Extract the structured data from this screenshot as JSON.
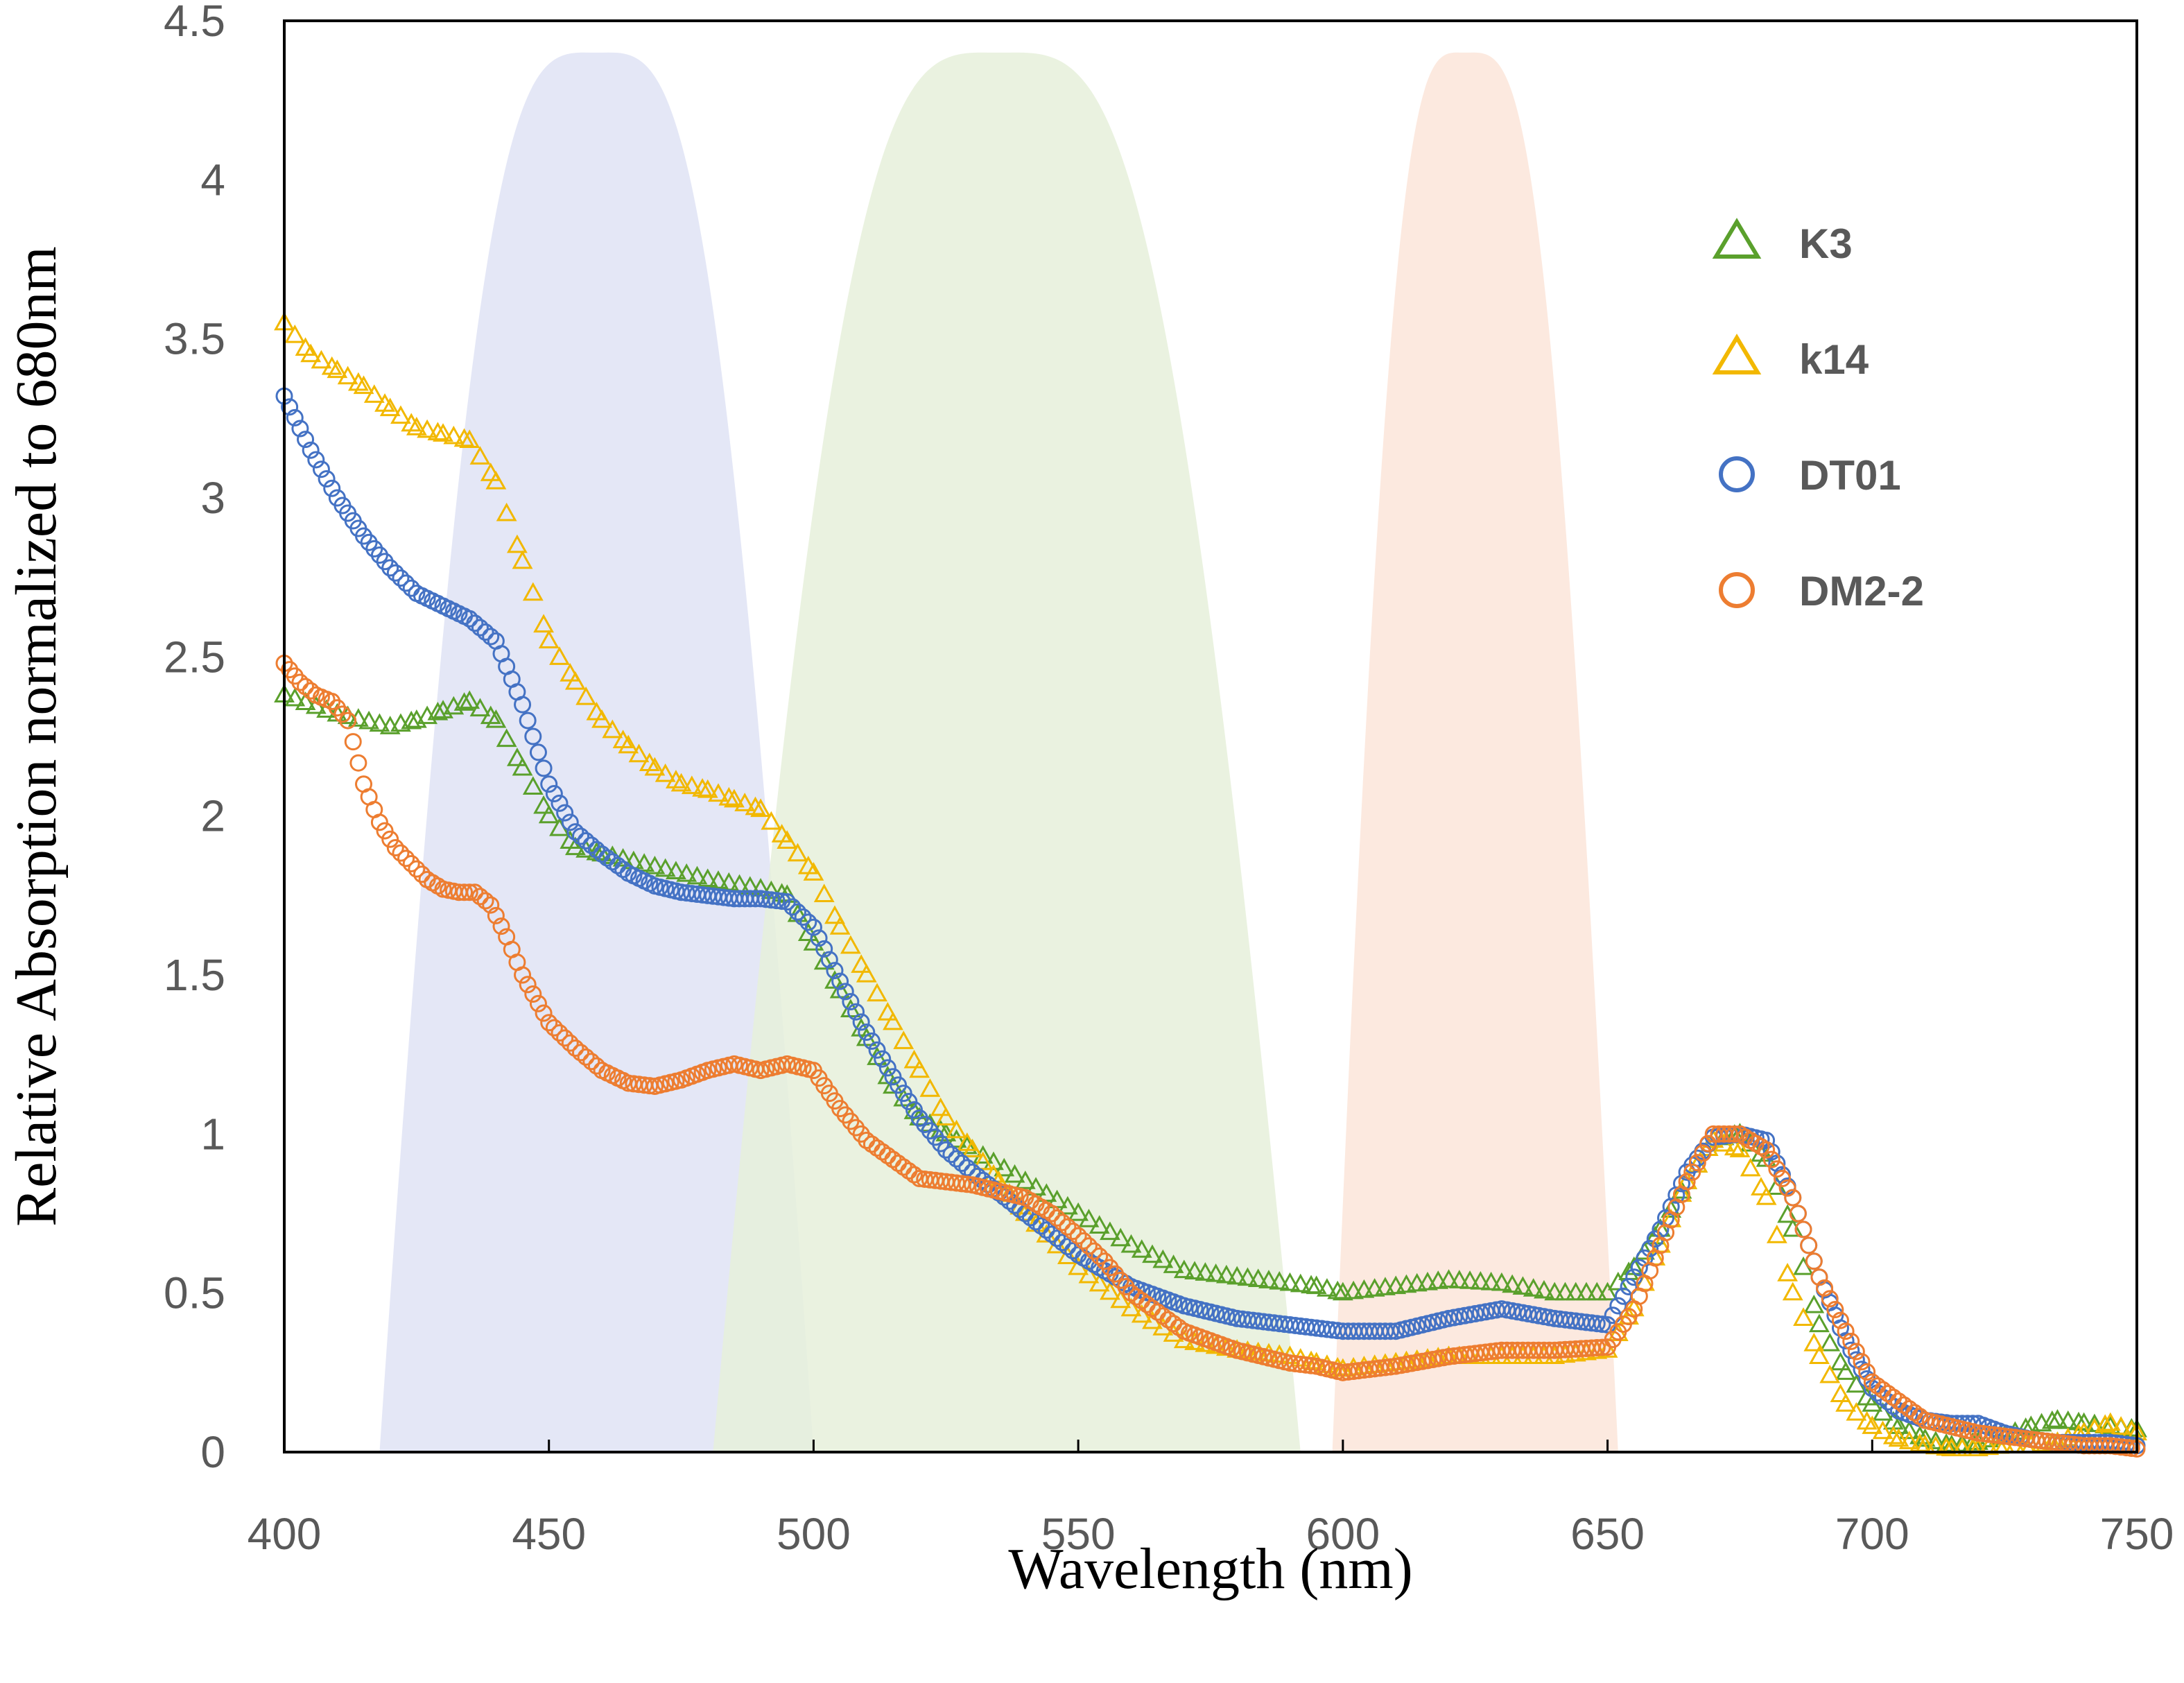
{
  "chart_data": {
    "type": "scatter",
    "title": "",
    "xlabel": "Wavelength (nm)",
    "ylabel": "Relative Absorption normalized to 680nm",
    "xlim": [
      400,
      750
    ],
    "ylim": [
      0,
      4.5
    ],
    "x_ticks": [
      "400",
      "450",
      "500",
      "550",
      "600",
      "650",
      "700",
      "750"
    ],
    "y_ticks": [
      "0",
      "0.5",
      "1",
      "1.5",
      "2",
      "2.5",
      "3",
      "3.5",
      "4",
      "4.5"
    ],
    "grid": false,
    "legend_position": "top-right",
    "bands": [
      {
        "name": "blue-band",
        "color": "#dfe3f4",
        "x_start": 418,
        "peak": 459,
        "x_end": 500,
        "height": 4.4
      },
      {
        "name": "green-band",
        "color": "#e6f0da",
        "x_start": 481,
        "peak": 535,
        "x_end": 592,
        "height": 4.4
      },
      {
        "name": "red-band",
        "color": "#fbe5d9",
        "x_start": 598,
        "peak": 623,
        "x_end": 652,
        "height": 4.4
      }
    ],
    "series": [
      {
        "name": "K3",
        "marker": "triangle",
        "color": "#5aa02c",
        "x": [
          400,
          410,
          420,
          425,
          430,
          435,
          440,
          445,
          450,
          455,
          460,
          470,
          480,
          490,
          495,
          500,
          505,
          510,
          515,
          520,
          525,
          530,
          540,
          550,
          560,
          570,
          580,
          590,
          595,
          600,
          610,
          620,
          630,
          640,
          650,
          655,
          660,
          665,
          670,
          675,
          680,
          685,
          690,
          695,
          700,
          705,
          710,
          715,
          720,
          725,
          730,
          735,
          740,
          745,
          750
        ],
        "y": [
          2.38,
          2.32,
          2.28,
          2.3,
          2.33,
          2.36,
          2.3,
          2.15,
          2.0,
          1.9,
          1.88,
          1.84,
          1.8,
          1.77,
          1.75,
          1.6,
          1.45,
          1.3,
          1.15,
          1.05,
          1.0,
          0.95,
          0.85,
          0.75,
          0.65,
          0.57,
          0.55,
          0.53,
          0.52,
          0.5,
          0.52,
          0.54,
          0.53,
          0.5,
          0.5,
          0.58,
          0.7,
          0.85,
          0.98,
          1.0,
          0.92,
          0.7,
          0.4,
          0.25,
          0.15,
          0.08,
          0.04,
          0.02,
          0.03,
          0.05,
          0.08,
          0.1,
          0.09,
          0.08,
          0.07
        ]
      },
      {
        "name": "k14",
        "marker": "triangle",
        "color": "#f2b800",
        "x": [
          400,
          405,
          410,
          415,
          420,
          425,
          430,
          435,
          440,
          445,
          450,
          455,
          460,
          465,
          470,
          475,
          480,
          485,
          490,
          495,
          500,
          505,
          510,
          515,
          520,
          525,
          530,
          535,
          540,
          550,
          560,
          570,
          580,
          590,
          595,
          600,
          610,
          620,
          630,
          640,
          650,
          655,
          660,
          665,
          670,
          675,
          680,
          685,
          690,
          695,
          700,
          705,
          710,
          715,
          720,
          725,
          730,
          735,
          740,
          745,
          750
        ],
        "y": [
          3.55,
          3.45,
          3.4,
          3.35,
          3.28,
          3.22,
          3.2,
          3.18,
          3.05,
          2.8,
          2.55,
          2.42,
          2.3,
          2.22,
          2.15,
          2.1,
          2.08,
          2.05,
          2.02,
          1.92,
          1.82,
          1.65,
          1.5,
          1.35,
          1.2,
          1.05,
          0.95,
          0.85,
          0.75,
          0.58,
          0.45,
          0.35,
          0.32,
          0.3,
          0.28,
          0.26,
          0.28,
          0.3,
          0.3,
          0.3,
          0.32,
          0.45,
          0.65,
          0.85,
          0.98,
          0.95,
          0.8,
          0.5,
          0.3,
          0.15,
          0.08,
          0.04,
          0.02,
          0.01,
          0.01,
          0.02,
          0.02,
          0.03,
          0.06,
          0.09,
          0.06
        ]
      },
      {
        "name": "DT01",
        "marker": "circle",
        "color": "#4472c4",
        "x": [
          400,
          405,
          410,
          415,
          420,
          425,
          430,
          435,
          440,
          445,
          450,
          455,
          460,
          465,
          470,
          475,
          480,
          485,
          490,
          495,
          500,
          505,
          510,
          515,
          520,
          525,
          530,
          540,
          550,
          560,
          570,
          580,
          590,
          600,
          610,
          620,
          630,
          640,
          650,
          655,
          660,
          665,
          670,
          675,
          680,
          685,
          690,
          695,
          700,
          705,
          710,
          715,
          720,
          725,
          730,
          735,
          740,
          745,
          750
        ],
        "y": [
          3.32,
          3.15,
          3.0,
          2.88,
          2.78,
          2.7,
          2.66,
          2.62,
          2.55,
          2.35,
          2.1,
          1.95,
          1.88,
          1.82,
          1.78,
          1.76,
          1.75,
          1.74,
          1.74,
          1.73,
          1.65,
          1.48,
          1.32,
          1.18,
          1.05,
          0.95,
          0.88,
          0.75,
          0.62,
          0.52,
          0.46,
          0.42,
          0.4,
          0.38,
          0.38,
          0.42,
          0.45,
          0.42,
          0.4,
          0.55,
          0.7,
          0.88,
          0.99,
          1.0,
          0.98,
          0.8,
          0.55,
          0.35,
          0.2,
          0.13,
          0.1,
          0.09,
          0.09,
          0.06,
          0.04,
          0.03,
          0.03,
          0.03,
          0.02
        ]
      },
      {
        "name": "DM2-2",
        "marker": "circle",
        "color": "#ed7d31",
        "x": [
          400,
          403,
          406,
          409,
          412,
          415,
          418,
          421,
          424,
          427,
          430,
          433,
          436,
          439,
          442,
          445,
          450,
          455,
          460,
          465,
          470,
          475,
          480,
          485,
          490,
          495,
          500,
          505,
          510,
          515,
          520,
          525,
          530,
          535,
          540,
          545,
          550,
          555,
          560,
          570,
          580,
          590,
          595,
          600,
          610,
          620,
          630,
          640,
          650,
          655,
          660,
          665,
          670,
          675,
          680,
          685,
          690,
          695,
          700,
          705,
          710,
          715,
          720,
          725,
          730,
          735,
          740,
          745,
          750
        ],
        "y": [
          2.48,
          2.42,
          2.38,
          2.36,
          2.3,
          2.1,
          1.98,
          1.9,
          1.85,
          1.8,
          1.77,
          1.76,
          1.76,
          1.72,
          1.62,
          1.5,
          1.35,
          1.27,
          1.2,
          1.16,
          1.15,
          1.17,
          1.2,
          1.22,
          1.2,
          1.22,
          1.2,
          1.08,
          0.98,
          0.92,
          0.86,
          0.85,
          0.84,
          0.82,
          0.8,
          0.75,
          0.68,
          0.6,
          0.5,
          0.38,
          0.32,
          0.28,
          0.27,
          0.25,
          0.27,
          0.3,
          0.32,
          0.32,
          0.33,
          0.45,
          0.65,
          0.85,
          1.0,
          1.0,
          0.95,
          0.8,
          0.55,
          0.38,
          0.22,
          0.16,
          0.1,
          0.08,
          0.06,
          0.05,
          0.04,
          0.03,
          0.02,
          0.02,
          0.01
        ]
      }
    ]
  }
}
